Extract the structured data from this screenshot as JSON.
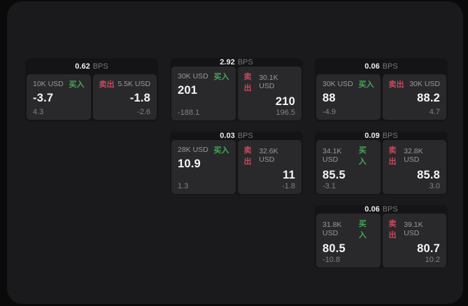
{
  "labels": {
    "bps_unit": "BPS",
    "buy": "买入",
    "sell": "卖出"
  },
  "colors": {
    "buy": "#43a857",
    "sell": "#c9485c",
    "panel_background": "#1a1a1c",
    "card_background": "#141416",
    "tile_background": "#29292c"
  },
  "cards": [
    {
      "bps": "0.62",
      "grid": {
        "col": 1,
        "row": 1
      },
      "buy": {
        "notional": "10K USD",
        "price": "-3.7",
        "sub": "4.3"
      },
      "sell": {
        "notional": "5.5K USD",
        "price": "-1.8",
        "sub": "-2.6"
      }
    },
    {
      "bps": "2.92",
      "grid": {
        "col": 2,
        "row": 1
      },
      "buy": {
        "notional": "30K USD",
        "price": "201",
        "sub": "-188.1"
      },
      "sell": {
        "notional": "30.1K USD",
        "price": "210",
        "sub": "196.5"
      }
    },
    {
      "bps": "0.06",
      "grid": {
        "col": 3,
        "row": 1
      },
      "buy": {
        "notional": "30K USD",
        "price": "88",
        "sub": "-4.9"
      },
      "sell": {
        "notional": "30K USD",
        "price": "88.2",
        "sub": "4.7"
      }
    },
    {
      "bps": "0.03",
      "grid": {
        "col": 2,
        "row": 2
      },
      "buy": {
        "notional": "28K USD",
        "price": "10.9",
        "sub": "1.3"
      },
      "sell": {
        "notional": "32.6K USD",
        "price": "11",
        "sub": "-1.8"
      }
    },
    {
      "bps": "0.09",
      "grid": {
        "col": 3,
        "row": 2
      },
      "buy": {
        "notional": "34.1K USD",
        "price": "85.5",
        "sub": "-3.1"
      },
      "sell": {
        "notional": "32.8K USD",
        "price": "85.8",
        "sub": "3.0"
      }
    },
    {
      "bps": "0.06",
      "grid": {
        "col": 3,
        "row": 3
      },
      "buy": {
        "notional": "31.8K USD",
        "price": "80.5",
        "sub": "-10.8"
      },
      "sell": {
        "notional": "39.1K USD",
        "price": "80.7",
        "sub": "10.2"
      }
    }
  ]
}
